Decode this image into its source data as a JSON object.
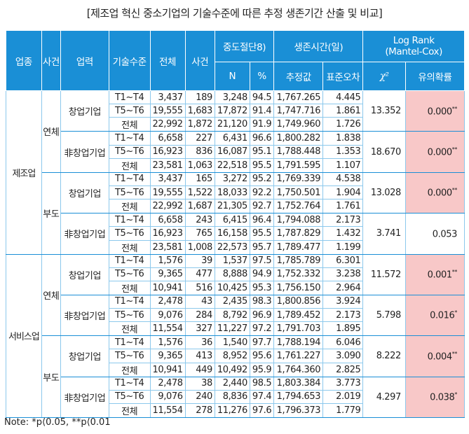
{
  "title": "[제조업 혁신 중소기업의 기술수준에 따른 추정 생존기간 산출 및 비교]",
  "headers": {
    "industry": "업종",
    "event": "사건",
    "age": "업력",
    "tech": "기술수준",
    "total": "전체",
    "events": "사건",
    "censored": "중도절단8)",
    "n": "N",
    "pct": "%",
    "survival": "생존시간(일)",
    "estimate": "추정값",
    "se": "표준오차",
    "logrank": "Log Rank (Mantel-Cox)",
    "chi": "χ²",
    "sig": "유의확률"
  },
  "accent_color": "#1a8fd6",
  "highlight_color": "#f8c8c8",
  "industries": [
    {
      "name": "제조업",
      "events": [
        {
          "name": "연체",
          "groups": [
            {
              "name": "창업기업",
              "chi": "13.352",
              "p": "0.000",
              "stars": "**",
              "highlight": true,
              "rows": [
                [
                  "T1~T4",
                  "3,437",
                  "189",
                  "3,248",
                  "94.5",
                  "1,767.265",
                  "4.445"
                ],
                [
                  "T5~T6",
                  "19,555",
                  "1,683",
                  "17,872",
                  "91.4",
                  "1,747.716",
                  "1.861"
                ],
                [
                  "전체",
                  "22,992",
                  "1,872",
                  "21,120",
                  "91.9",
                  "1,749.960",
                  "1.726"
                ]
              ]
            },
            {
              "name": "非창업기업",
              "chi": "18.670",
              "p": "0.000",
              "stars": "**",
              "highlight": true,
              "rows": [
                [
                  "T1~T4",
                  "6,658",
                  "227",
                  "6,431",
                  "96.6",
                  "1,800.282",
                  "1.838"
                ],
                [
                  "T5~T6",
                  "16,923",
                  "836",
                  "16,087",
                  "95.1",
                  "1,788.448",
                  "1.353"
                ],
                [
                  "전체",
                  "23,581",
                  "1,063",
                  "22,518",
                  "95.5",
                  "1,791.595",
                  "1.107"
                ]
              ]
            }
          ]
        },
        {
          "name": "부도",
          "groups": [
            {
              "name": "창업기업",
              "chi": "13.028",
              "p": "0.000",
              "stars": "**",
              "highlight": true,
              "rows": [
                [
                  "T1~T4",
                  "3,437",
                  "165",
                  "3,272",
                  "95.2",
                  "1,769.339",
                  "4.538"
                ],
                [
                  "T5~T6",
                  "19,555",
                  "1,522",
                  "18,033",
                  "92.2",
                  "1,750.501",
                  "1.904"
                ],
                [
                  "전체",
                  "22,992",
                  "1,687",
                  "21,305",
                  "92.7",
                  "1,752.764",
                  "1.761"
                ]
              ]
            },
            {
              "name": "非창업기업",
              "chi": "3.741",
              "p": "0.053",
              "stars": "",
              "highlight": false,
              "rows": [
                [
                  "T1~T4",
                  "6,658",
                  "243",
                  "6,415",
                  "96.4",
                  "1,794.088",
                  "2.173"
                ],
                [
                  "T5~T6",
                  "16,923",
                  "765",
                  "16,158",
                  "95.5",
                  "1,787.829",
                  "1.432"
                ],
                [
                  "전체",
                  "23,581",
                  "1,008",
                  "22,573",
                  "95.7",
                  "1,789.477",
                  "1.199"
                ]
              ]
            }
          ]
        }
      ]
    },
    {
      "name": "서비스업",
      "events": [
        {
          "name": "연체",
          "groups": [
            {
              "name": "창업기업",
              "chi": "11.572",
              "p": "0.001",
              "stars": "**",
              "highlight": true,
              "rows": [
                [
                  "T1~T4",
                  "1,576",
                  "39",
                  "1,537",
                  "97.5",
                  "1,785.789",
                  "6.301"
                ],
                [
                  "T5~T6",
                  "9,365",
                  "477",
                  "8,888",
                  "94.9",
                  "1,752.332",
                  "3.238"
                ],
                [
                  "전체",
                  "10,941",
                  "516",
                  "10,425",
                  "95.3",
                  "1,756.150",
                  "2.964"
                ]
              ]
            },
            {
              "name": "非창업기업",
              "chi": "5.798",
              "p": "0.016",
              "stars": "*",
              "highlight": true,
              "rows": [
                [
                  "T1~T4",
                  "2,478",
                  "43",
                  "2,435",
                  "98.3",
                  "1,800.856",
                  "3.924"
                ],
                [
                  "T5~T6",
                  "9,076",
                  "284",
                  "8,792",
                  "96.9",
                  "1,789.452",
                  "2.173"
                ],
                [
                  "전체",
                  "11,554",
                  "327",
                  "11,227",
                  "97.2",
                  "1,791.703",
                  "1.895"
                ]
              ]
            }
          ]
        },
        {
          "name": "부도",
          "groups": [
            {
              "name": "창업기업",
              "chi": "8.222",
              "p": "0.004",
              "stars": "**",
              "highlight": true,
              "rows": [
                [
                  "T1~T4",
                  "1,576",
                  "36",
                  "1,540",
                  "97.7",
                  "1,788.194",
                  "6.046"
                ],
                [
                  "T5~T6",
                  "9,365",
                  "413",
                  "8,952",
                  "95.6",
                  "1,761.227",
                  "3.090"
                ],
                [
                  "전체",
                  "10,941",
                  "449",
                  "10,492",
                  "95.9",
                  "1,764.360",
                  "2.825"
                ]
              ]
            },
            {
              "name": "非창업기업",
              "chi": "4.297",
              "p": "0.038",
              "stars": "*",
              "highlight": true,
              "rows": [
                [
                  "T1~T4",
                  "2,478",
                  "38",
                  "2,440",
                  "98.5",
                  "1,803.384",
                  "3.773"
                ],
                [
                  "T5~T6",
                  "9,076",
                  "240",
                  "8,836",
                  "97.4",
                  "1,794.653",
                  "2.019"
                ],
                [
                  "전체",
                  "11,554",
                  "278",
                  "11,276",
                  "97.6",
                  "1,796.373",
                  "1.779"
                ]
              ]
            }
          ]
        }
      ]
    }
  ],
  "note": "Note: *p⟨0.05, **p⟨0.01"
}
